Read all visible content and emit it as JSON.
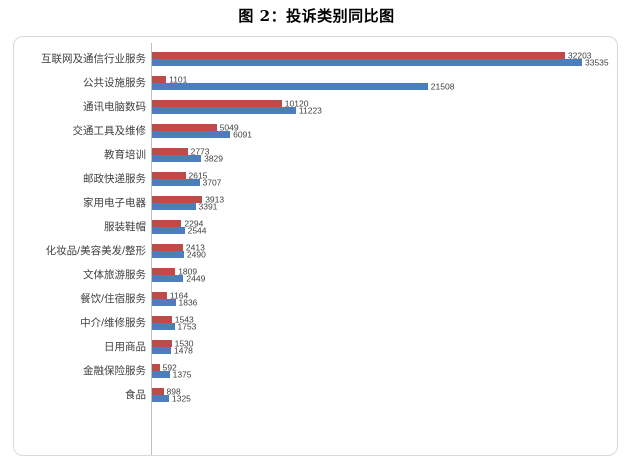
{
  "title": "图 2：投诉类别同比图",
  "colors": {
    "series_red": "#be4b48",
    "series_blue": "#4a7ebd",
    "frame_border": "#d9d9d9",
    "axis_line": "#bfbfbf",
    "value_label_text": "#404040",
    "category_label_text": "#3f3f3f",
    "background": "#ffffff"
  },
  "chart_data": {
    "type": "bar",
    "orientation": "horizontal",
    "title": "图 2：投诉类别同比图",
    "grid": false,
    "legend": "none",
    "value_labels": true,
    "xlim": [
      0,
      33535
    ],
    "categories": [
      "互联网及通信行业服务",
      "公共设施服务",
      "通讯电脑数码",
      "交通工具及维修",
      "教育培训",
      "邮政快递服务",
      "家用电子电器",
      "服装鞋帽",
      "化妆品/美容美发/整形",
      "文体旅游服务",
      "餐饮/住宿服务",
      "中介/维修服务",
      "日用商品",
      "金融保险服务",
      "食品"
    ],
    "series": [
      {
        "name": "red-series",
        "color": "#be4b48",
        "values": [
          32203,
          1101,
          10120,
          5049,
          2773,
          2615,
          3913,
          2294,
          2413,
          1809,
          1164,
          1543,
          1530,
          592,
          898
        ]
      },
      {
        "name": "blue-series",
        "color": "#4a7ebd",
        "values": [
          33535,
          21508,
          11223,
          6091,
          3829,
          3707,
          3391,
          2544,
          2490,
          2449,
          1836,
          1753,
          1478,
          1375,
          1325
        ]
      }
    ]
  }
}
